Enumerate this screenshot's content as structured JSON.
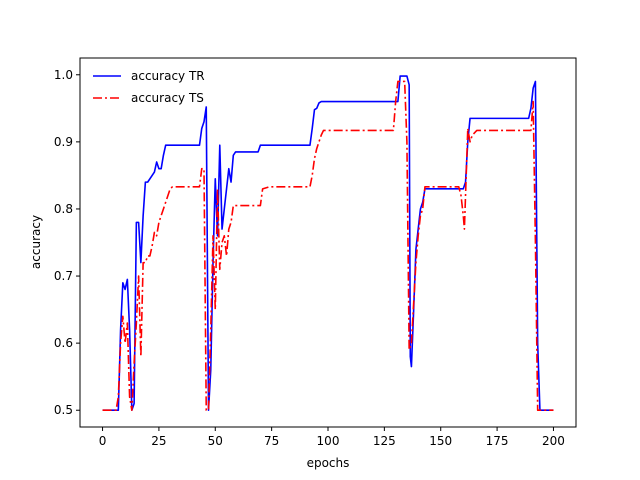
{
  "chart_data": {
    "type": "line",
    "xlabel": "epochs",
    "ylabel": "accuracy",
    "xlim": [
      -10,
      210
    ],
    "ylim": [
      0.475,
      1.025
    ],
    "x_ticks": [
      0,
      25,
      50,
      75,
      100,
      125,
      150,
      175,
      200
    ],
    "x_tick_labels": [
      "0",
      "25",
      "50",
      "75",
      "100",
      "125",
      "150",
      "175",
      "200"
    ],
    "y_ticks": [
      0.5,
      0.6,
      0.7,
      0.8,
      0.9,
      1.0
    ],
    "y_tick_labels": [
      "0.5",
      "0.6",
      "0.7",
      "0.8",
      "0.9",
      "1.0"
    ],
    "grid": false,
    "legend_position": "top-left",
    "series": [
      {
        "name": "accuracy TR",
        "color": "#0000ff",
        "style": "solid",
        "points": [
          [
            0,
            0.5
          ],
          [
            7,
            0.5
          ],
          [
            8,
            0.62
          ],
          [
            9,
            0.69
          ],
          [
            10,
            0.68
          ],
          [
            11,
            0.695
          ],
          [
            12,
            0.62
          ],
          [
            13,
            0.5
          ],
          [
            14,
            0.51
          ],
          [
            15,
            0.78
          ],
          [
            16,
            0.78
          ],
          [
            17,
            0.72
          ],
          [
            18,
            0.79
          ],
          [
            19,
            0.84
          ],
          [
            20,
            0.84
          ],
          [
            21,
            0.845
          ],
          [
            22,
            0.85
          ],
          [
            23,
            0.855
          ],
          [
            24,
            0.87
          ],
          [
            25,
            0.86
          ],
          [
            26,
            0.86
          ],
          [
            27,
            0.88
          ],
          [
            28,
            0.895
          ],
          [
            43,
            0.895
          ],
          [
            44,
            0.92
          ],
          [
            45,
            0.93
          ],
          [
            46,
            0.952
          ],
          [
            47,
            0.5
          ],
          [
            48,
            0.56
          ],
          [
            49,
            0.72
          ],
          [
            50,
            0.845
          ],
          [
            51,
            0.76
          ],
          [
            52,
            0.895
          ],
          [
            53,
            0.77
          ],
          [
            54,
            0.8
          ],
          [
            55,
            0.83
          ],
          [
            56,
            0.86
          ],
          [
            57,
            0.84
          ],
          [
            58,
            0.88
          ],
          [
            59,
            0.885
          ],
          [
            69,
            0.885
          ],
          [
            70,
            0.895
          ],
          [
            92,
            0.895
          ],
          [
            93,
            0.92
          ],
          [
            94,
            0.948
          ],
          [
            95,
            0.95
          ],
          [
            96,
            0.958
          ],
          [
            97,
            0.96
          ],
          [
            131,
            0.96
          ],
          [
            132,
            0.998
          ],
          [
            135,
            0.998
          ],
          [
            136,
            0.985
          ],
          [
            136.5,
            0.58
          ],
          [
            137,
            0.565
          ],
          [
            138,
            0.65
          ],
          [
            139,
            0.74
          ],
          [
            140,
            0.77
          ],
          [
            141,
            0.8
          ],
          [
            142,
            0.81
          ],
          [
            143,
            0.83
          ],
          [
            158,
            0.83
          ],
          [
            159,
            0.83
          ],
          [
            160,
            0.83
          ],
          [
            161,
            0.84
          ],
          [
            162,
            0.9
          ],
          [
            163,
            0.935
          ],
          [
            189,
            0.935
          ],
          [
            190,
            0.95
          ],
          [
            191,
            0.98
          ],
          [
            192,
            0.99
          ],
          [
            193,
            0.6
          ],
          [
            194,
            0.5
          ],
          [
            200,
            0.5
          ]
        ]
      },
      {
        "name": "accuracy TS",
        "color": "#ff0000",
        "style": "dashdot",
        "points": [
          [
            0,
            0.5
          ],
          [
            6,
            0.5
          ],
          [
            7,
            0.52
          ],
          [
            8,
            0.6
          ],
          [
            9,
            0.64
          ],
          [
            10,
            0.6
          ],
          [
            11,
            0.63
          ],
          [
            12,
            0.52
          ],
          [
            13,
            0.5
          ],
          [
            14,
            0.57
          ],
          [
            15,
            0.63
          ],
          [
            16,
            0.7
          ],
          [
            17,
            0.58
          ],
          [
            18,
            0.72
          ],
          [
            19,
            0.72
          ],
          [
            20,
            0.73
          ],
          [
            21,
            0.73
          ],
          [
            22,
            0.745
          ],
          [
            23,
            0.765
          ],
          [
            24,
            0.76
          ],
          [
            25,
            0.78
          ],
          [
            26,
            0.79
          ],
          [
            27,
            0.8
          ],
          [
            28,
            0.81
          ],
          [
            29,
            0.82
          ],
          [
            30,
            0.83
          ],
          [
            31,
            0.833
          ],
          [
            43,
            0.833
          ],
          [
            44,
            0.86
          ],
          [
            45,
            0.86
          ],
          [
            46,
            0.5
          ],
          [
            47,
            0.5
          ],
          [
            48,
            0.62
          ],
          [
            49,
            0.76
          ],
          [
            50,
            0.65
          ],
          [
            51,
            0.83
          ],
          [
            52,
            0.71
          ],
          [
            53,
            0.75
          ],
          [
            54,
            0.76
          ],
          [
            55,
            0.73
          ],
          [
            56,
            0.77
          ],
          [
            57,
            0.78
          ],
          [
            58,
            0.805
          ],
          [
            70,
            0.805
          ],
          [
            71,
            0.83
          ],
          [
            74,
            0.833
          ],
          [
            92,
            0.833
          ],
          [
            93,
            0.85
          ],
          [
            94,
            0.875
          ],
          [
            95,
            0.89
          ],
          [
            96,
            0.9
          ],
          [
            97,
            0.91
          ],
          [
            98,
            0.917
          ],
          [
            129,
            0.917
          ],
          [
            130,
            0.96
          ],
          [
            131,
            0.99
          ],
          [
            132,
            0.99
          ],
          [
            134,
            0.99
          ],
          [
            135,
            0.9
          ],
          [
            136,
            0.59
          ],
          [
            137,
            0.6
          ],
          [
            138,
            0.66
          ],
          [
            139,
            0.72
          ],
          [
            140,
            0.76
          ],
          [
            141,
            0.79
          ],
          [
            142,
            0.8
          ],
          [
            143,
            0.833
          ],
          [
            157,
            0.833
          ],
          [
            158,
            0.833
          ],
          [
            159,
            0.82
          ],
          [
            160,
            0.79
          ],
          [
            160.5,
            0.77
          ],
          [
            161,
            0.82
          ],
          [
            162,
            0.92
          ],
          [
            163,
            0.9
          ],
          [
            164,
            0.91
          ],
          [
            166,
            0.917
          ],
          [
            190,
            0.917
          ],
          [
            191,
            0.96
          ],
          [
            192,
            0.75
          ],
          [
            193,
            0.5
          ],
          [
            200,
            0.5
          ]
        ]
      }
    ]
  }
}
